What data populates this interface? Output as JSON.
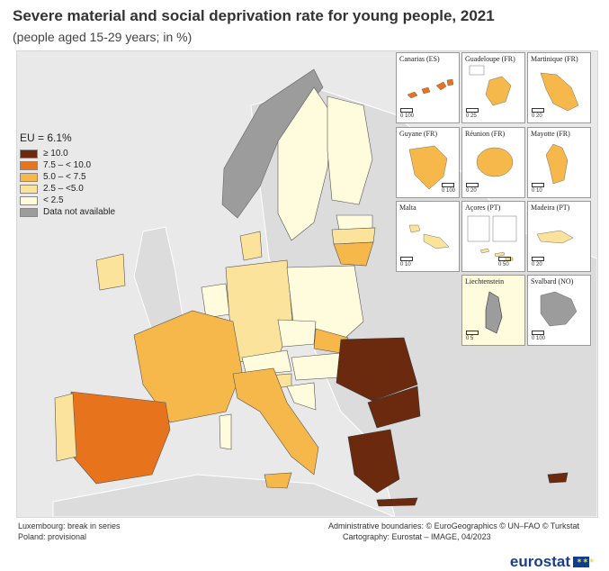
{
  "title": "Severe material and social deprivation rate for young people, 2021",
  "subtitle": "(people aged 15-29 years; in %)",
  "legend": {
    "eu_value": "EU = 6.1%",
    "classes": [
      {
        "label": "≥ 10.0",
        "color": "#6b2a0e"
      },
      {
        "label": "7.5 – < 10.0",
        "color": "#e8731d"
      },
      {
        "label": "5.0 – < 7.5",
        "color": "#f6b84b"
      },
      {
        "label": "2.5 – <5.0",
        "color": "#fce39b"
      },
      {
        "label": "< 2.5",
        "color": "#fffbdd"
      },
      {
        "label": "Data not available",
        "color": "#9c9c9c"
      }
    ]
  },
  "insets": [
    {
      "name": "Canarias (ES)",
      "scale": "0   100"
    },
    {
      "name": "Guadeloupe (FR)",
      "scale": "0   25"
    },
    {
      "name": "Martinique (FR)",
      "scale": "0   20"
    },
    {
      "name": "Guyane (FR)",
      "scale": "0   100"
    },
    {
      "name": "Réunion (FR)",
      "scale": "0   20"
    },
    {
      "name": "Mayotte (FR)",
      "scale": "0   10"
    },
    {
      "name": "Malta",
      "scale": "0   10"
    },
    {
      "name": "Açores (PT)",
      "scale": "0   50"
    },
    {
      "name": "Madeira (PT)",
      "scale": "0   20"
    },
    {
      "name": "Liechtenstein",
      "scale": "0   5"
    },
    {
      "name": "Svalbard (NO)",
      "scale": "0   100"
    }
  ],
  "notes": {
    "left1": "Luxembourg: break in series",
    "left2": "Poland: provisional",
    "right1": "Administrative boundaries: © EuroGeographics © UN–FAO © Turkstat",
    "right2": "Cartography: Eurostat – IMAGE, 04/2023"
  },
  "logo": "eurostat",
  "flag_stars": "✶✶✶"
}
